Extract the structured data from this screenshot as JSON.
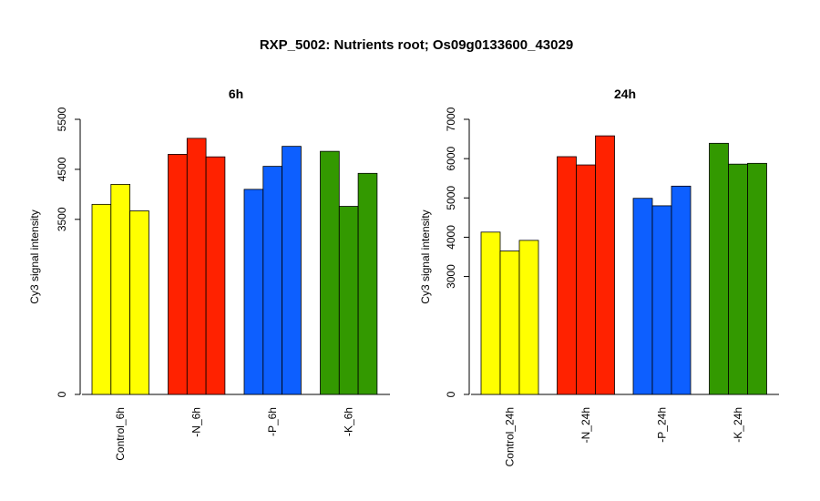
{
  "figure": {
    "title": "RXP_5002: Nutrients root; Os09g0133600_43029"
  },
  "chart_data": [
    {
      "type": "bar",
      "title": "6h",
      "ylabel": "Cy3 signal intensity",
      "ylim": [
        0,
        5500
      ],
      "yticks": [
        0,
        3500,
        4500,
        5500
      ],
      "yticks_labels": [
        "0",
        "3500",
        "4500",
        "5500"
      ],
      "groups": [
        {
          "label": "Control_6h",
          "color": "#ffff00",
          "values": [
            3800,
            4200,
            3670
          ]
        },
        {
          "label": "-N_6h",
          "color": "#ff2200",
          "values": [
            4800,
            5120,
            4750
          ]
        },
        {
          "label": "-P_6h",
          "color": "#0d5fff",
          "values": [
            4100,
            4560,
            4960
          ]
        },
        {
          "label": "-K_6h",
          "color": "#339900",
          "values": [
            4860,
            3760,
            4420
          ]
        }
      ]
    },
    {
      "type": "bar",
      "title": "24h",
      "ylabel": "Cy3 signal intensity",
      "ylim": [
        0,
        7000
      ],
      "yticks": [
        0,
        3000,
        4000,
        5000,
        6000,
        7000
      ],
      "yticks_labels": [
        "0",
        "3000",
        "4000",
        "5000",
        "6000",
        "7000"
      ],
      "groups": [
        {
          "label": "Control_24h",
          "color": "#ffff00",
          "values": [
            4130,
            3650,
            3920
          ]
        },
        {
          "label": "-N_24h",
          "color": "#ff2200",
          "values": [
            6050,
            5840,
            6580
          ]
        },
        {
          "label": "-P_24h",
          "color": "#0d5fff",
          "values": [
            4990,
            4800,
            5300
          ]
        },
        {
          "label": "-K_24h",
          "color": "#339900",
          "values": [
            6390,
            5860,
            5880
          ]
        }
      ]
    }
  ]
}
